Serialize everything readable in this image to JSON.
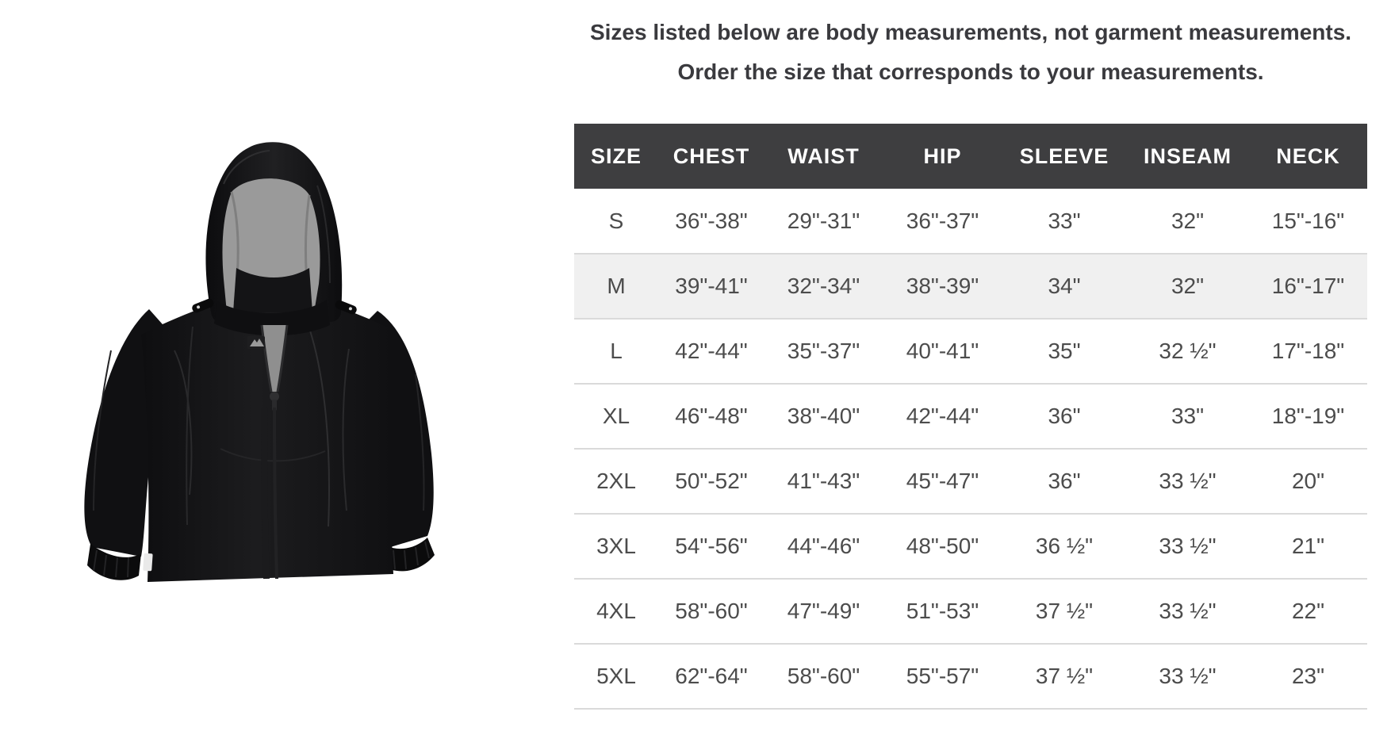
{
  "notice": {
    "line1": "Sizes listed below are body measurements, not garment measurements.",
    "line2": "Order the size that corresponds to your measurements."
  },
  "size_chart": {
    "columns": [
      "SIZE",
      "CHEST",
      "WAIST",
      "HIP",
      "SLEEVE",
      "INSEAM",
      "NECK"
    ],
    "highlighted_size": "M",
    "rows": [
      {
        "cells": [
          "S",
          "36\"-38\"",
          "29\"-31\"",
          "36\"-37\"",
          "33\"",
          "32\"",
          "15\"-16\""
        ],
        "highlighted": false
      },
      {
        "cells": [
          "M",
          "39\"-41\"",
          "32\"-34\"",
          "38\"-39\"",
          "34\"",
          "32\"",
          "16\"-17\""
        ],
        "highlighted": true
      },
      {
        "cells": [
          "L",
          "42\"-44\"",
          "35\"-37\"",
          "40\"-41\"",
          "35\"",
          "32 ½\"",
          "17\"-18\""
        ],
        "highlighted": false
      },
      {
        "cells": [
          "XL",
          "46\"-48\"",
          "38\"-40\"",
          "42\"-44\"",
          "36\"",
          "33\"",
          "18\"-19\""
        ],
        "highlighted": false
      },
      {
        "cells": [
          "2XL",
          "50\"-52\"",
          "41\"-43\"",
          "45\"-47\"",
          "36\"",
          "33 ½\"",
          "20\""
        ],
        "highlighted": false
      },
      {
        "cells": [
          "3XL",
          "54\"-56\"",
          "44\"-46\"",
          "48\"-50\"",
          "36 ½\"",
          "33 ½\"",
          "21\""
        ],
        "highlighted": false
      },
      {
        "cells": [
          "4XL",
          "58\"-60\"",
          "47\"-49\"",
          "51\"-53\"",
          "37 ½\"",
          "33 ½\"",
          "22\""
        ],
        "highlighted": false
      },
      {
        "cells": [
          "5XL",
          "62\"-64\"",
          "58\"-60\"",
          "55\"-57\"",
          "37 ½\"",
          "33 ½\"",
          "23\""
        ],
        "highlighted": false
      }
    ],
    "colors": {
      "header_bg": "#3e3e40",
      "header_text": "#ffffff",
      "highlight_row_bg": "#f0f0f0",
      "row_divider": "#dadada",
      "cell_text": "#4c4c4c"
    }
  },
  "product_image": {
    "description": "black-hooded-rain-jacket",
    "colors": {
      "shell": "#131315",
      "hood_lining": "#9a9a9a",
      "inner_collar": "#141416"
    }
  }
}
